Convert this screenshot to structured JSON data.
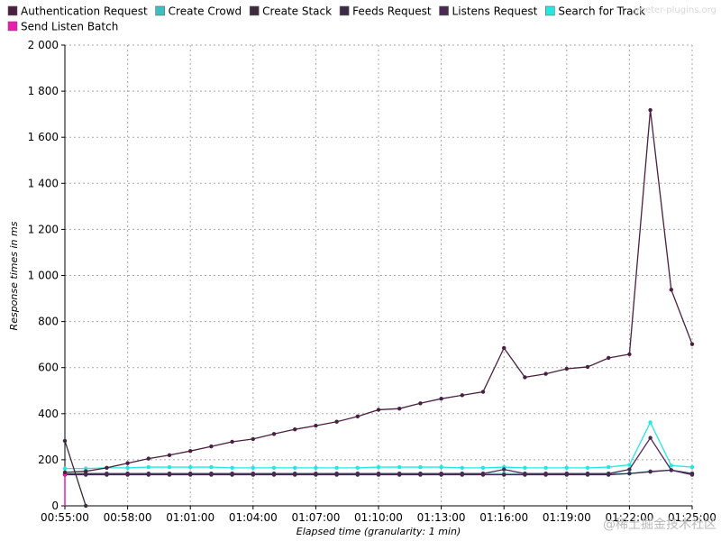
{
  "watermark": "jmeter-plugins.org",
  "corner_watermark": "@稀土掘金技术社区",
  "chart_data": {
    "type": "line",
    "xlabel": "Elapsed time (granularity: 1 min)",
    "ylabel": "Response times in ms",
    "ylim": [
      0,
      2000
    ],
    "xlim": [
      0,
      30
    ],
    "grid": true,
    "legend_position": "top",
    "y_ticks": [
      0,
      200,
      400,
      600,
      800,
      1000,
      1200,
      1400,
      1600,
      1800,
      2000
    ],
    "y_tick_labels": [
      "0",
      "200",
      "400",
      "600",
      "800",
      "1 000",
      "1 200",
      "1 400",
      "1 600",
      "1 800",
      "2 000"
    ],
    "x_ticks": [
      0,
      3,
      6,
      9,
      12,
      15,
      18,
      21,
      24,
      27,
      30
    ],
    "x_tick_labels": [
      "00:55:00",
      "00:58:00",
      "01:01:00",
      "01:04:00",
      "01:07:00",
      "01:10:00",
      "01:13:00",
      "01:16:00",
      "01:19:00",
      "01:22:00",
      "01:25:00"
    ],
    "series": [
      {
        "name": "Authentication Request",
        "color": "#4a2040",
        "x": [
          0,
          1,
          2,
          3,
          4,
          5,
          6,
          7,
          8,
          9,
          10,
          11,
          12,
          13,
          14,
          15,
          16,
          17,
          18,
          19,
          20,
          21,
          22,
          23,
          24,
          25,
          26,
          27,
          28,
          29,
          30
        ],
        "values": [
          145,
          150,
          165,
          185,
          205,
          220,
          238,
          258,
          278,
          290,
          312,
          332,
          348,
          365,
          388,
          417,
          422,
          445,
          465,
          480,
          495,
          685,
          558,
          573,
          595,
          603,
          642,
          658,
          1718,
          938,
          702
        ]
      },
      {
        "name": "Create Crowd",
        "color": "#3bbfbf",
        "x": [
          1,
          2,
          3,
          4,
          5,
          6,
          7,
          8,
          9,
          10,
          11,
          12,
          13,
          14,
          15,
          16,
          17,
          18,
          19,
          20,
          21,
          22,
          23,
          24,
          25,
          26,
          27,
          28,
          29,
          30
        ],
        "values": [
          140,
          140,
          140,
          140,
          140,
          140,
          140,
          140,
          140,
          140,
          140,
          140,
          140,
          140,
          140,
          140,
          140,
          140,
          140,
          140,
          140,
          140,
          140,
          140,
          140,
          140,
          140,
          150,
          155,
          140
        ]
      },
      {
        "name": "Create Stack",
        "color": "#3d2a3d",
        "x": [
          0,
          1
        ],
        "values": [
          282,
          0
        ]
      },
      {
        "name": "Feeds Request",
        "color": "#3b2a48",
        "x": [
          0,
          1,
          2,
          3,
          4,
          5,
          6,
          7,
          8,
          9,
          10,
          11,
          12,
          13,
          14,
          15,
          16,
          17,
          18,
          19,
          20,
          21,
          22,
          23,
          24,
          25,
          26,
          27,
          28,
          29,
          30
        ],
        "values": [
          135,
          135,
          135,
          135,
          135,
          135,
          135,
          135,
          135,
          135,
          135,
          135,
          135,
          135,
          135,
          135,
          135,
          135,
          135,
          135,
          135,
          135,
          135,
          135,
          135,
          135,
          135,
          140,
          148,
          155,
          140
        ]
      },
      {
        "name": "Listens Request",
        "color": "#4a2a55",
        "x": [
          0,
          1,
          2,
          3,
          4,
          5,
          6,
          7,
          8,
          9,
          10,
          11,
          12,
          13,
          14,
          15,
          16,
          17,
          18,
          19,
          20,
          21,
          22,
          23,
          24,
          25,
          26,
          27,
          28,
          29,
          30
        ],
        "values": [
          138,
          140,
          140,
          140,
          140,
          140,
          140,
          140,
          140,
          140,
          140,
          140,
          140,
          140,
          140,
          140,
          140,
          140,
          140,
          140,
          140,
          158,
          140,
          140,
          140,
          140,
          140,
          158,
          295,
          155,
          135
        ]
      },
      {
        "name": "Search for Track",
        "color": "#22e8e0",
        "x": [
          0,
          1,
          2,
          3,
          4,
          5,
          6,
          7,
          8,
          9,
          10,
          11,
          12,
          13,
          14,
          15,
          16,
          17,
          18,
          19,
          20,
          21,
          22,
          23,
          24,
          25,
          26,
          27,
          28,
          29,
          30
        ],
        "values": [
          162,
          162,
          165,
          165,
          168,
          168,
          168,
          168,
          165,
          165,
          165,
          165,
          165,
          165,
          165,
          168,
          168,
          168,
          168,
          165,
          165,
          168,
          165,
          165,
          165,
          165,
          168,
          178,
          362,
          175,
          168
        ]
      },
      {
        "name": "Send Listen Batch",
        "color": "#e81fb0",
        "x": [
          0
        ],
        "values": [
          138
        ]
      }
    ]
  }
}
